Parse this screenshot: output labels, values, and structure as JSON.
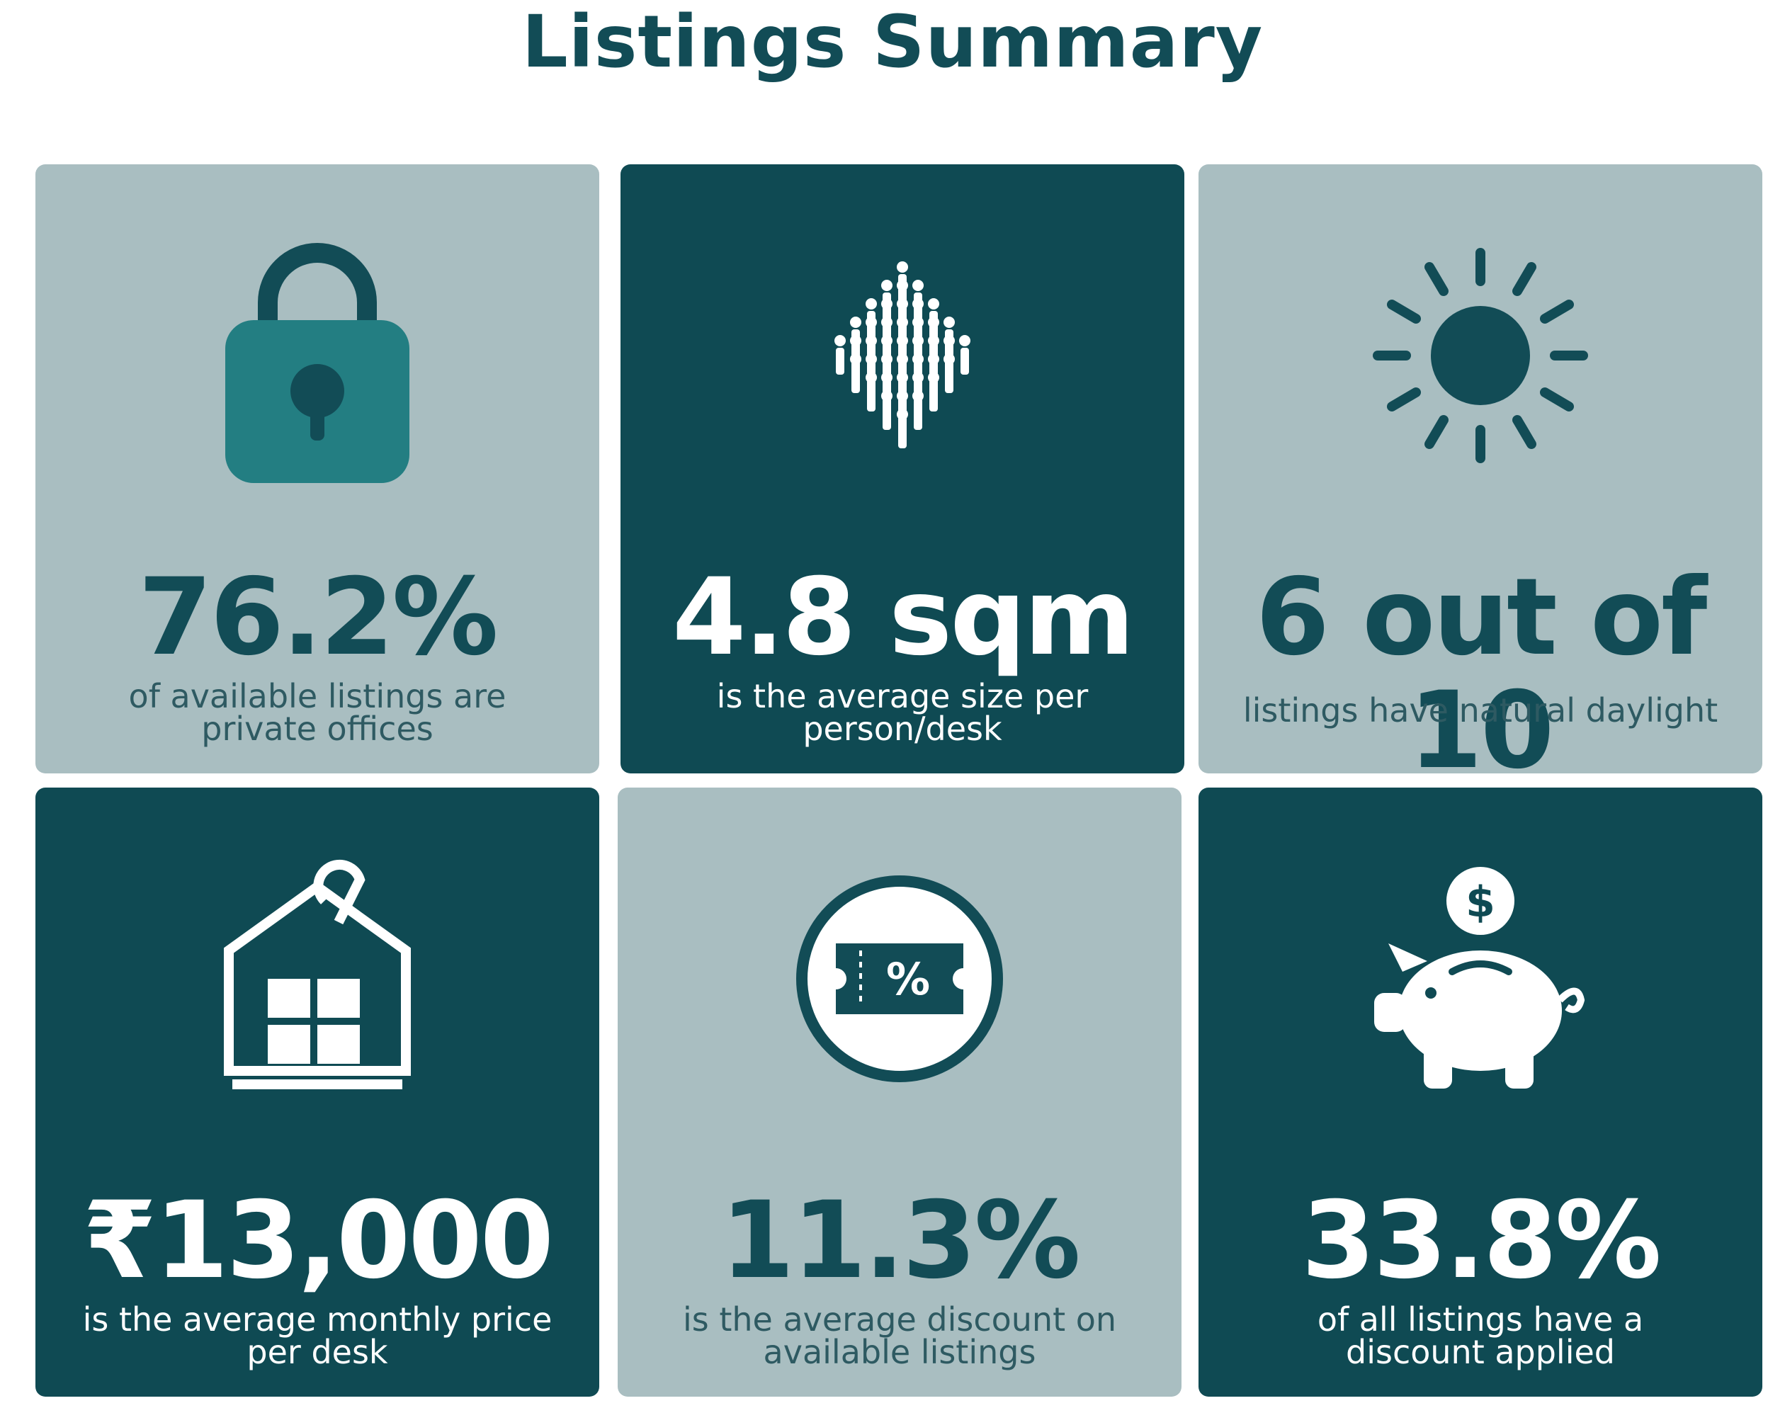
{
  "page": {
    "title": "Listings Summary"
  },
  "colors": {
    "dark_teal": "#0f4a53",
    "light_gray_teal": "#a9bec1",
    "lock_teal": "#237e82"
  },
  "cards": [
    {
      "stat": "76.2%",
      "line1": "of available listings are",
      "line2": "private offices",
      "icon": "padlock-icon",
      "style": "light"
    },
    {
      "stat": "4.8 sqm",
      "line1": "is the average size per",
      "line2": "person/desk",
      "icon": "crowd-icon",
      "style": "dark"
    },
    {
      "stat": "6 out of 10",
      "line1": "listings have natural daylight",
      "line2": "",
      "icon": "sun-icon",
      "style": "light"
    },
    {
      "stat": "₹13,000",
      "line1": "is the average monthly price",
      "line2": "per desk",
      "icon": "house-tag-icon",
      "style": "dark"
    },
    {
      "stat": "11.3%",
      "line1": "is the average discount on",
      "line2": "available listings",
      "icon": "discount-ticket-icon",
      "style": "light"
    },
    {
      "stat": "33.8%",
      "line1": "of all listings have a",
      "line2": "discount applied",
      "icon": "piggy-bank-icon",
      "style": "dark"
    }
  ]
}
